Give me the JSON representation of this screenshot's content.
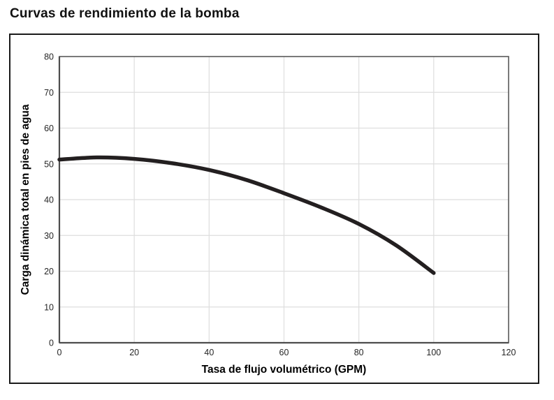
{
  "chart_data": {
    "type": "line",
    "title": "Curvas de rendimiento de la bomba",
    "xlabel": "Tasa de flujo volumétrico (GPM)",
    "ylabel": "Carga dinámica total en pies de agua",
    "xlim": [
      0,
      120
    ],
    "ylim": [
      0,
      80
    ],
    "xticks": [
      0,
      20,
      40,
      60,
      80,
      100,
      120
    ],
    "yticks": [
      0,
      10,
      20,
      30,
      40,
      50,
      60,
      70,
      80
    ],
    "grid": true,
    "legend": "none",
    "series": [
      {
        "x": [
          0,
          10,
          20,
          30,
          40,
          50,
          60,
          70,
          80,
          90,
          100
        ],
        "y": [
          51.2,
          51.8,
          51.4,
          50.2,
          48.3,
          45.5,
          41.8,
          37.8,
          33.2,
          27.2,
          19.5
        ],
        "color": "#231f20",
        "line_width": 5.5,
        "smooth": true
      }
    ]
  },
  "colors": {
    "curve": "#231f20",
    "gridline": "#dedede",
    "plot_border": "#595959",
    "axis_line": "#4d4d4d",
    "frame_border": "#1a1a1a",
    "tick_text": "#262626",
    "label_text": "#000000"
  }
}
